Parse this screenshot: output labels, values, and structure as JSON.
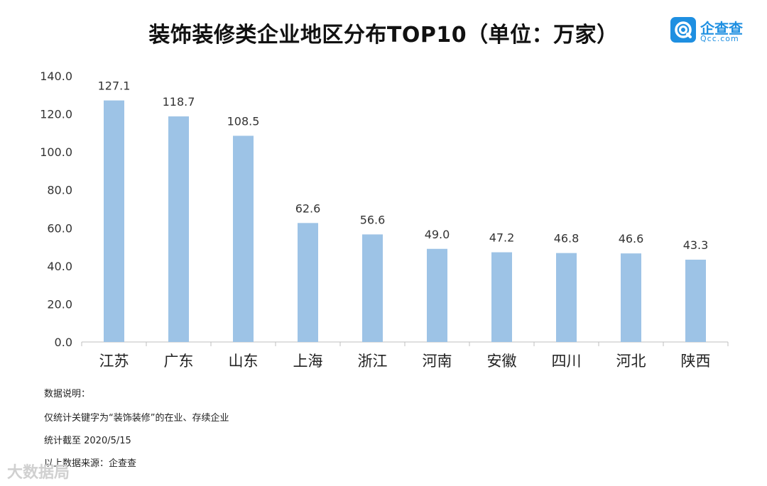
{
  "title": "装饰装修类企业地区分布TOP10（单位：万家）",
  "logo": {
    "name": "企查查",
    "domain": "Qcc.com",
    "color": "#1e8fe1"
  },
  "chart_data": {
    "type": "bar",
    "categories": [
      "江苏",
      "广东",
      "山东",
      "上海",
      "浙江",
      "河南",
      "安徽",
      "四川",
      "河北",
      "陕西"
    ],
    "values": [
      127.1,
      118.7,
      108.5,
      62.6,
      56.6,
      49.0,
      47.2,
      46.8,
      46.6,
      43.3
    ],
    "value_labels": [
      "127.1",
      "118.7",
      "108.5",
      "62.6",
      "56.6",
      "49.0",
      "47.2",
      "46.8",
      "46.6",
      "43.3"
    ],
    "ylim": [
      0,
      140
    ],
    "yticks": [
      "0.0",
      "20.0",
      "40.0",
      "60.0",
      "80.0",
      "100.0",
      "120.0",
      "140.0"
    ],
    "bar_color": "#9dc3e6",
    "grid": false,
    "legend": "none"
  },
  "notes": {
    "heading": "数据说明：",
    "line1": "仅统计关键字为“装饰装修”的在业、存续企业",
    "line2": "统计截至 2020/5/15",
    "line3": "以上数据来源：企查查"
  },
  "watermark": "大数据局"
}
